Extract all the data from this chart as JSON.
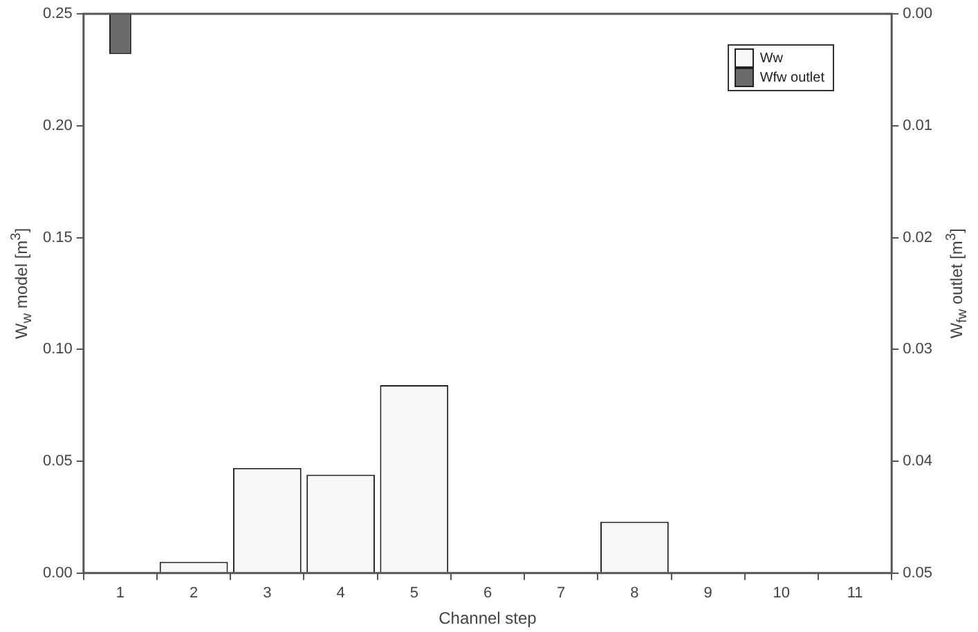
{
  "chart_data": {
    "type": "bar",
    "xlabel": "Channel step",
    "ylabel": "W$_{w}$ model [m$^{3}$]",
    "y2label": "W$_{fw}$ outlet  [m$^{3}$]",
    "categories": [
      "1",
      "2",
      "3",
      "4",
      "5",
      "6",
      "7",
      "8",
      "9",
      "10",
      "11"
    ],
    "series": [
      {
        "name": "Ww",
        "color": "#f7f7f7",
        "values": [
          0,
          0.005,
          0.047,
          0.044,
          0.084,
          0,
          0,
          0.023,
          0,
          0,
          0
        ]
      },
      {
        "name": "Wfw outlet",
        "color": "#6b6b6b",
        "axis": "y2",
        "values": [
          0.0036,
          null,
          null,
          null,
          null,
          null,
          null,
          null,
          null,
          null,
          null
        ]
      }
    ],
    "ylim": [
      0,
      0.25
    ],
    "yticks": [
      {
        "value": 0,
        "label": "0.00"
      },
      {
        "value": 0.05,
        "label": "0.05"
      },
      {
        "value": 0.1,
        "label": "0.10"
      },
      {
        "value": 0.15,
        "label": "0.15"
      },
      {
        "value": 0.2,
        "label": "0.20"
      },
      {
        "value": 0.25,
        "label": "0.25"
      }
    ],
    "y2lim": [
      0.05,
      0
    ],
    "y2ticks": [
      {
        "value": 0,
        "label": "0.00"
      },
      {
        "value": 0.01,
        "label": "0.01"
      },
      {
        "value": 0.02,
        "label": "0.02"
      },
      {
        "value": 0.03,
        "label": "0.03"
      },
      {
        "value": 0.04,
        "label": "0.04"
      },
      {
        "value": 0.05,
        "label": "0.05"
      }
    ],
    "legend": "top right",
    "grid": false
  }
}
